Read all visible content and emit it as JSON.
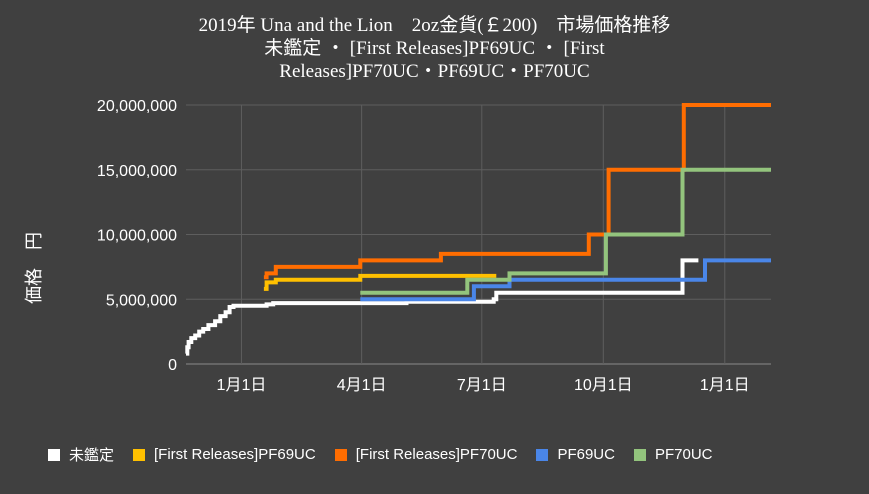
{
  "chart_data": {
    "type": "line",
    "title_lines": [
      "2019年 Una and the Lion　2oz金貨(￡200)　市場価格推移",
      "未鑑定 ・ [First Releases]PF69UC ・ [First",
      "Releases]PF70UC・PF69UC・PF70UC"
    ],
    "ylabel": "価格　円",
    "xlabel": "",
    "ylim": [
      0,
      20000000
    ],
    "y_ticks": [
      "0",
      "5,000,000",
      "10,000,000",
      "15,000,000",
      "20,000,000"
    ],
    "y_tick_values": [
      0,
      5000000,
      10000000,
      15000000,
      20000000
    ],
    "x_ticks": [
      "1月1日",
      "4月1日",
      "7月1日",
      "10月1日",
      "1月1日"
    ],
    "x_tick_dates": [
      "2020-01-01",
      "2020-04-01",
      "2020-07-01",
      "2020-10-01",
      "2021-01-01"
    ],
    "xlim": [
      "2019-11-20",
      "2021-02-05"
    ],
    "grid": true,
    "step": true,
    "legend_position": "bottom",
    "series": [
      {
        "name": "未鑑定",
        "color": "#ffffff",
        "points": [
          [
            "2019-11-20",
            800000
          ],
          [
            "2019-11-21",
            1300000
          ],
          [
            "2019-11-22",
            1700000
          ],
          [
            "2019-11-24",
            2000000
          ],
          [
            "2019-11-27",
            2200000
          ],
          [
            "2019-11-30",
            2500000
          ],
          [
            "2019-12-03",
            2700000
          ],
          [
            "2019-12-07",
            3000000
          ],
          [
            "2019-12-12",
            3300000
          ],
          [
            "2019-12-16",
            3700000
          ],
          [
            "2019-12-20",
            4000000
          ],
          [
            "2019-12-23",
            4400000
          ],
          [
            "2019-12-26",
            4500000
          ],
          [
            "2020-01-20",
            4600000
          ],
          [
            "2020-01-25",
            4700000
          ],
          [
            "2020-05-05",
            4800000
          ],
          [
            "2020-07-10",
            5000000
          ],
          [
            "2020-07-12",
            5500000
          ],
          [
            "2020-11-30",
            8000000
          ],
          [
            "2020-12-12",
            8000000
          ]
        ]
      },
      {
        "name": "[First Releases]PF69UC",
        "color": "#ffc000",
        "points": [
          [
            "2020-01-18",
            5800000
          ],
          [
            "2020-01-20",
            6300000
          ],
          [
            "2020-01-27",
            6500000
          ],
          [
            "2020-03-31",
            6800000
          ],
          [
            "2020-07-12",
            6800000
          ]
        ]
      },
      {
        "name": "[First Releases]PF70UC",
        "color": "#ff6d01",
        "points": [
          [
            "2020-01-18",
            6700000
          ],
          [
            "2020-01-20",
            7000000
          ],
          [
            "2020-01-27",
            7500000
          ],
          [
            "2020-03-31",
            8000000
          ],
          [
            "2020-05-31",
            8500000
          ],
          [
            "2020-09-20",
            10000000
          ],
          [
            "2020-10-05",
            15000000
          ],
          [
            "2020-12-01",
            20000000
          ],
          [
            "2021-02-05",
            20000000
          ]
        ]
      },
      {
        "name": "PF69UC",
        "color": "#4a86e8",
        "points": [
          [
            "2020-03-31",
            5000000
          ],
          [
            "2020-06-25",
            6000000
          ],
          [
            "2020-07-22",
            6500000
          ],
          [
            "2020-12-17",
            8000000
          ],
          [
            "2021-02-05",
            8000000
          ]
        ]
      },
      {
        "name": "PF70UC",
        "color": "#93c47d",
        "points": [
          [
            "2020-03-31",
            5500000
          ],
          [
            "2020-06-20",
            6500000
          ],
          [
            "2020-07-22",
            7000000
          ],
          [
            "2020-10-03",
            10000000
          ],
          [
            "2020-11-30",
            15000000
          ],
          [
            "2021-02-05",
            15000000
          ]
        ]
      }
    ]
  }
}
